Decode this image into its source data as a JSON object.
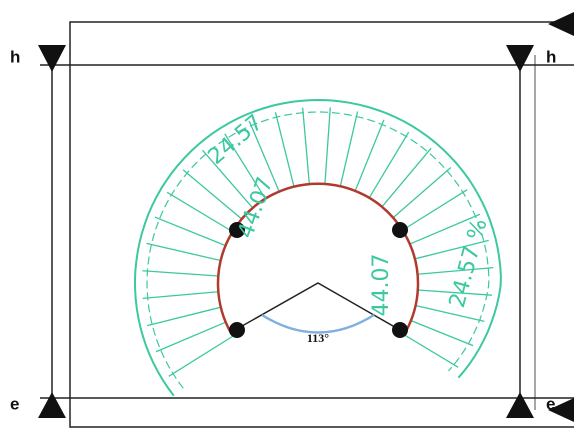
{
  "labels": {
    "top_left": "h",
    "top_right": "h",
    "bottom_left": "e",
    "bottom_right": "e"
  },
  "dimensions": {
    "outer_left": "24.57",
    "inner_left": "44.07",
    "inner_right": "44.07",
    "outer_right": "24.57 %"
  },
  "angle": "113°"
}
